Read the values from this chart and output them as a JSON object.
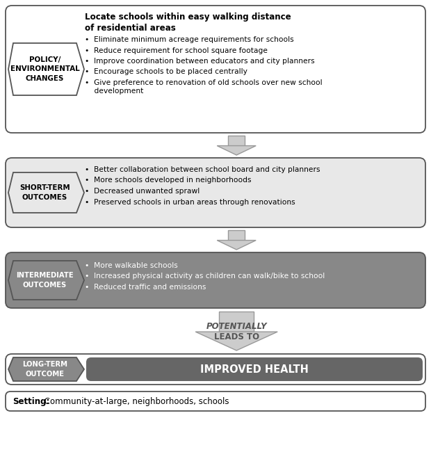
{
  "title_line1": "Locate schools within easy walking distance",
  "title_line2": "of residential areas",
  "policy_label": "POLICY/\nENVIRONMENTAL\nCHANGES",
  "policy_bullets": [
    "Eliminate minimum acreage requirements for schools",
    "Reduce requirement for school square footage",
    "Improve coordination between educators and city planners",
    "Encourage schools to be placed centrally",
    "Give preference to renovation of old schools over new school\n    development"
  ],
  "short_label": "SHORT-TERM\nOUTCOMES",
  "short_bullets": [
    "Better collaboration between school board and city planners",
    "More schools developed in neighborhoods",
    "Decreased unwanted sprawl",
    "Preserved schools in urban areas through renovations"
  ],
  "intermediate_label": "INTERMEDIATE\nOUTCOMES",
  "intermediate_bullets": [
    "More walkable schools",
    "Increased physical activity as children can walk/bike to school",
    "Reduced traffic and emissions"
  ],
  "arrow_label_line1": "POTENTIALLY",
  "arrow_label_line2": "LEADS TO",
  "long_label": "LONG-TERM\nOUTCOME",
  "long_text": "IMPROVED HEALTH",
  "setting_bold": "Setting:",
  "setting_normal": " Community-at-large, neighborhoods, schools",
  "color_white": "#FFFFFF",
  "color_light_gray": "#CCCCCC",
  "color_medium_gray": "#999999",
  "color_dark_gray": "#666666",
  "color_darker_gray": "#555555",
  "color_border_light": "#888888",
  "color_border_dark": "#555555",
  "color_black": "#000000",
  "color_bg": "#FFFFFF",
  "row1_bg": "#FFFFFF",
  "row2_bg": "#E8E8E8",
  "row3_bg": "#888888",
  "row4_bg": "#666666",
  "pent1_bg": "#FFFFFF",
  "pent2_bg": "#E8E8E8",
  "pent3_bg": "#888888",
  "pent4_bg": "#888888"
}
